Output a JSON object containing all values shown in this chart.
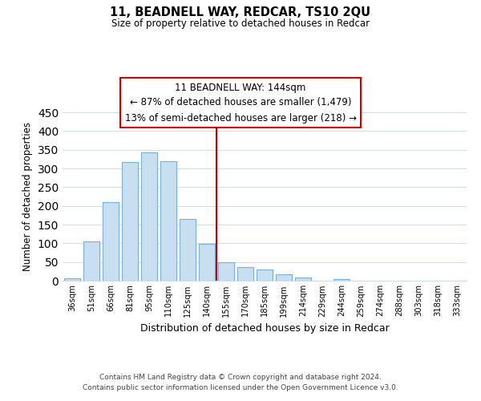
{
  "title": "11, BEADNELL WAY, REDCAR, TS10 2QU",
  "subtitle": "Size of property relative to detached houses in Redcar",
  "xlabel": "Distribution of detached houses by size in Redcar",
  "ylabel": "Number of detached properties",
  "bar_color": "#c8dff0",
  "bar_edge_color": "#7ab0d4",
  "categories": [
    "36sqm",
    "51sqm",
    "66sqm",
    "81sqm",
    "95sqm",
    "110sqm",
    "125sqm",
    "140sqm",
    "155sqm",
    "170sqm",
    "185sqm",
    "199sqm",
    "214sqm",
    "229sqm",
    "244sqm",
    "259sqm",
    "274sqm",
    "288sqm",
    "303sqm",
    "318sqm",
    "333sqm"
  ],
  "values": [
    7,
    106,
    211,
    317,
    342,
    319,
    165,
    99,
    50,
    37,
    29,
    18,
    9,
    1,
    5,
    0,
    0,
    0,
    0,
    0,
    0
  ],
  "ylim": [
    0,
    450
  ],
  "yticks": [
    0,
    50,
    100,
    150,
    200,
    250,
    300,
    350,
    400,
    450
  ],
  "vline_x": 7.5,
  "vline_color": "#cc0000",
  "annotation_title": "11 BEADNELL WAY: 144sqm",
  "annotation_line1": "← 87% of detached houses are smaller (1,479)",
  "annotation_line2": "13% of semi-detached houses are larger (218) →",
  "footer_line1": "Contains HM Land Registry data © Crown copyright and database right 2024.",
  "footer_line2": "Contains public sector information licensed under the Open Government Licence v3.0.",
  "background_color": "#ffffff",
  "grid_color": "#d0dce8"
}
